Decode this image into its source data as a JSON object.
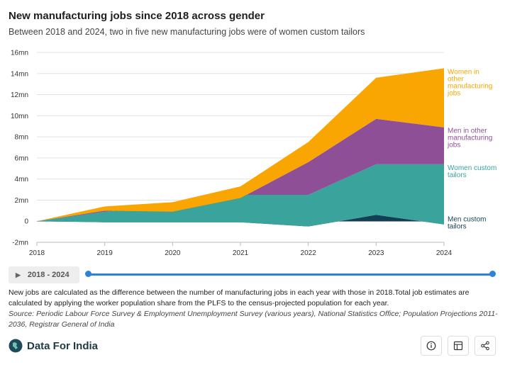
{
  "header": {
    "title": "New manufacturing jobs since 2018 across gender",
    "subtitle": "Between 2018 and 2024, two in five new manufacturing jobs were of women custom tailors"
  },
  "chart_data": {
    "type": "area",
    "x": [
      2018,
      2019,
      2020,
      2021,
      2022,
      2023,
      2024
    ],
    "ylim": [
      -2,
      16
    ],
    "yticks": [
      -2,
      0,
      2,
      4,
      6,
      8,
      10,
      12,
      14,
      16
    ],
    "ytick_labels": [
      "-2mn",
      "0",
      "2mn",
      "4mn",
      "6mn",
      "8mn",
      "10mn",
      "12mn",
      "14mn",
      "16mn"
    ],
    "xtick_labels": [
      "2018",
      "2019",
      "2020",
      "2021",
      "2022",
      "2023",
      "2024"
    ],
    "stacked": true,
    "series": [
      {
        "name": "Men custom tailors",
        "label_lines": [
          "Men custom",
          "tailors"
        ],
        "color": "#123f55",
        "label_color": "#123f55",
        "values": [
          0,
          -0.1,
          -0.1,
          -0.1,
          -0.5,
          0.6,
          -0.3
        ]
      },
      {
        "name": "Women custom tailors",
        "label_lines": [
          "Women custom",
          "tailors"
        ],
        "color": "#3aa39c",
        "label_color": "#3aa39c",
        "values": [
          0,
          1.0,
          1.6,
          2.6,
          3.0,
          4.8,
          5.7
        ]
      },
      {
        "name": "Men in other manufacturing jobs",
        "label_lines": [
          "Men in other",
          "manufacturing",
          "jobs"
        ],
        "color": "#8f4f97",
        "label_color": "#8f4f97",
        "values": [
          0,
          0.1,
          -0.6,
          -0.3,
          3.1,
          4.3,
          3.5
        ]
      },
      {
        "name": "Women in other manufacturing jobs",
        "label_lines": [
          "Women in",
          "other",
          "manufacturing",
          "jobs"
        ],
        "color": "#f9a602",
        "label_color": "#f9a602",
        "values": [
          0,
          0.4,
          0.9,
          1.1,
          1.9,
          3.9,
          5.6
        ]
      }
    ],
    "grid": true
  },
  "timeline": {
    "range_label": "2018 - 2024"
  },
  "notes": {
    "text": "New jobs are calculated as the difference between the number of manufacturing jobs in each year with those in 2018.Total job estimates are calculated by applying the worker population share from the PLFS to the census-projected population for each year.",
    "source": "Source: Periodic Labour Force Survey & Employment Unemployment Survey (various years), National Statistics Office; Population Projections 2011-2036, Registrar General of India"
  },
  "footer": {
    "brand": "Data For India",
    "icons": [
      "info-icon",
      "table-icon",
      "share-icon"
    ]
  }
}
